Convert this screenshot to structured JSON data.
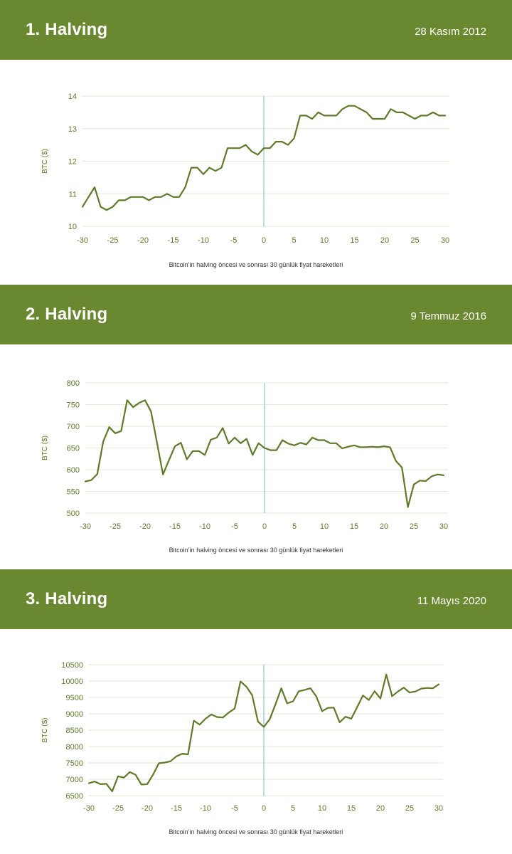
{
  "sections": [
    {
      "title": "1. Halving",
      "date": "28 Kasım 2012",
      "caption": "Bitcoin’in halving öncesi ve sonrası 30 günlük fiyat hareketleri"
    },
    {
      "title": "2. Halving",
      "date": "9 Temmuz 2016",
      "caption": "Bitcoin’in halving öncesi ve sonrası 30 günlük fiyat hareketleri"
    },
    {
      "title": "3. Halving",
      "date": "11 Mayıs 2020",
      "caption": "Bitcoin’in halving öncesi ve sonrası 30 günlük fiyat hareketleri"
    }
  ],
  "colors": {
    "band": "#6a8830",
    "line": "#5e7a2a",
    "marker": "#9fd3d3",
    "grid": "#e6e6d6"
  },
  "chart_data": [
    {
      "type": "line",
      "ylabel": "BTC ($)",
      "xlim": [
        -30,
        30
      ],
      "ylim": [
        10,
        14
      ],
      "xticks": [
        -30,
        -25,
        -20,
        -15,
        -10,
        -5,
        0,
        5,
        10,
        15,
        20,
        25,
        30
      ],
      "yticks": [
        10,
        11,
        12,
        13,
        14
      ],
      "marker_x": 0,
      "grid": true,
      "x": [
        -30,
        -29,
        -28,
        -27,
        -26,
        -25,
        -24,
        -23,
        -22,
        -21,
        -20,
        -19,
        -18,
        -17,
        -16,
        -15,
        -14,
        -13,
        -12,
        -11,
        -10,
        -9,
        -8,
        -7,
        -6,
        -5,
        -4,
        -3,
        -2,
        -1,
        0,
        1,
        2,
        3,
        4,
        5,
        6,
        7,
        8,
        9,
        10,
        11,
        12,
        13,
        14,
        15,
        16,
        17,
        18,
        19,
        20,
        21,
        22,
        23,
        24,
        25,
        26,
        27,
        28,
        29,
        30
      ],
      "y": [
        10.6,
        10.9,
        11.2,
        10.6,
        10.5,
        10.6,
        10.8,
        10.8,
        10.9,
        10.9,
        10.9,
        10.8,
        10.9,
        10.9,
        11.0,
        10.9,
        10.9,
        11.2,
        11.8,
        11.8,
        11.6,
        11.8,
        11.7,
        11.8,
        12.4,
        12.4,
        12.4,
        12.5,
        12.3,
        12.2,
        12.4,
        12.4,
        12.6,
        12.6,
        12.5,
        12.7,
        13.4,
        13.4,
        13.3,
        13.5,
        13.4,
        13.4,
        13.4,
        13.6,
        13.7,
        13.7,
        13.6,
        13.5,
        13.3,
        13.3,
        13.3,
        13.6,
        13.5,
        13.5,
        13.4,
        13.3,
        13.4,
        13.4,
        13.5,
        13.4,
        13.4
      ]
    },
    {
      "type": "line",
      "ylabel": "BTC ($)",
      "xlim": [
        -30,
        30
      ],
      "ylim": [
        500,
        800
      ],
      "xticks": [
        -30,
        -25,
        -20,
        -15,
        -10,
        -5,
        0,
        5,
        10,
        15,
        20,
        25,
        30
      ],
      "yticks": [
        500,
        550,
        600,
        650,
        700,
        750,
        800
      ],
      "marker_x": 0,
      "grid": true,
      "x": [
        -30,
        -29,
        -28,
        -27,
        -26,
        -25,
        -24,
        -23,
        -22,
        -21,
        -20,
        -19,
        -18,
        -17,
        -16,
        -15,
        -14,
        -13,
        -12,
        -11,
        -10,
        -9,
        -8,
        -7,
        -6,
        -5,
        -4,
        -3,
        -2,
        -1,
        0,
        1,
        2,
        3,
        4,
        5,
        6,
        7,
        8,
        9,
        10,
        11,
        12,
        13,
        14,
        15,
        16,
        17,
        18,
        19,
        20,
        21,
        22,
        23,
        24,
        25,
        26,
        27,
        28,
        29,
        30
      ],
      "y": [
        573,
        576,
        590,
        665,
        698,
        684,
        689,
        760,
        744,
        754,
        760,
        734,
        662,
        589,
        622,
        654,
        662,
        624,
        643,
        643,
        634,
        669,
        674,
        696,
        660,
        674,
        661,
        671,
        634,
        661,
        650,
        645,
        645,
        668,
        660,
        656,
        662,
        658,
        674,
        668,
        668,
        661,
        661,
        649,
        653,
        656,
        652,
        652,
        653,
        652,
        654,
        652,
        620,
        605,
        514,
        566,
        575,
        574,
        585,
        589,
        587
      ]
    },
    {
      "type": "line",
      "ylabel": "BTC ($)",
      "xlim": [
        -30,
        30
      ],
      "ylim": [
        6500,
        10500
      ],
      "xticks": [
        -30,
        -25,
        -20,
        -15,
        -10,
        -5,
        0,
        5,
        10,
        15,
        20,
        25,
        30
      ],
      "yticks": [
        6500,
        7000,
        7500,
        8000,
        8500,
        9000,
        9500,
        10000,
        10500
      ],
      "marker_x": 0,
      "grid": true,
      "x": [
        -30,
        -29,
        -28,
        -27,
        -26,
        -25,
        -24,
        -23,
        -22,
        -21,
        -20,
        -19,
        -18,
        -17,
        -16,
        -15,
        -14,
        -13,
        -12,
        -11,
        -10,
        -9,
        -8,
        -7,
        -6,
        -5,
        -4,
        -3,
        -2,
        -1,
        0,
        1,
        2,
        3,
        4,
        5,
        6,
        7,
        8,
        9,
        10,
        11,
        12,
        13,
        14,
        15,
        16,
        17,
        18,
        19,
        20,
        21,
        22,
        23,
        24,
        25,
        26,
        27,
        28,
        29,
        30
      ],
      "y": [
        6880,
        6930,
        6850,
        6860,
        6630,
        7090,
        7050,
        7220,
        7140,
        6840,
        6850,
        7140,
        7490,
        7510,
        7550,
        7700,
        7780,
        7760,
        8790,
        8670,
        8850,
        8980,
        8900,
        8890,
        9040,
        9160,
        9990,
        9830,
        9570,
        8760,
        8600,
        8830,
        9290,
        9780,
        9320,
        9380,
        9690,
        9730,
        9780,
        9530,
        9080,
        9180,
        9190,
        8740,
        8910,
        8850,
        9200,
        9560,
        9420,
        9690,
        9470,
        10200,
        9540,
        9680,
        9800,
        9650,
        9680,
        9770,
        9790,
        9780,
        9900
      ]
    }
  ]
}
